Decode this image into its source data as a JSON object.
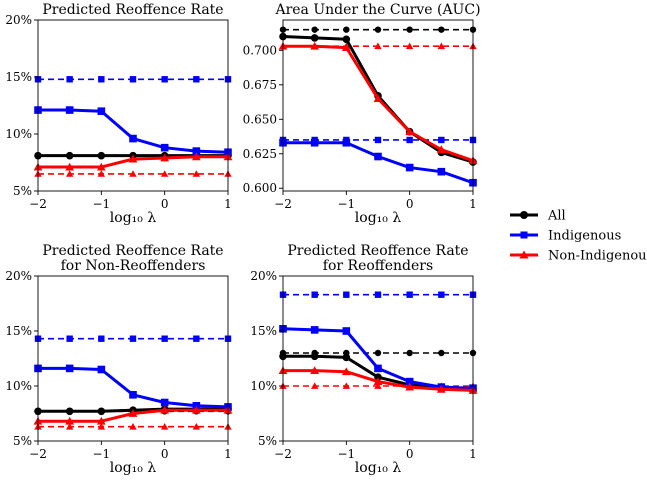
{
  "legend": {
    "placement": "right-center",
    "entries": [
      {
        "label": "All",
        "color": "#000000",
        "marker": "circle"
      },
      {
        "label": "Indigenous",
        "color": "#0000ff",
        "marker": "square"
      },
      {
        "label": "Non-Indigenous",
        "color": "#ff0000",
        "marker": "triangle"
      }
    ]
  },
  "chart_data": [
    {
      "type": "line",
      "title": "Predicted Reoffence Rate",
      "xlabel": "log₁₀ λ",
      "ylabel": "",
      "x": [
        -2,
        -1.5,
        -1,
        -0.5,
        0,
        0.5,
        1
      ],
      "xlim": [
        -2,
        1
      ],
      "ylim": [
        5,
        20
      ],
      "xticks": [
        {
          "v": -2,
          "label": "−2"
        },
        {
          "v": -1,
          "label": "−1"
        },
        {
          "v": 0,
          "label": "0"
        },
        {
          "v": 1,
          "label": "1"
        }
      ],
      "yticks": [
        {
          "v": 5,
          "label": "5%"
        },
        {
          "v": 10,
          "label": "10%"
        },
        {
          "v": 15,
          "label": "15%"
        },
        {
          "v": 20,
          "label": "20%"
        }
      ],
      "series": [
        {
          "name": "All",
          "group": "All",
          "style": "solid",
          "values": [
            8.1,
            8.1,
            8.1,
            8.1,
            8.1,
            8.1,
            8.1
          ]
        },
        {
          "name": "Indigenous",
          "group": "Indigenous",
          "style": "solid",
          "values": [
            12.1,
            12.1,
            12.0,
            9.6,
            8.8,
            8.5,
            8.4
          ]
        },
        {
          "name": "Non-Indigenous",
          "group": "Non-Indigenous",
          "style": "solid",
          "values": [
            7.1,
            7.1,
            7.1,
            7.8,
            7.9,
            8.0,
            8.0
          ]
        },
        {
          "group": "All",
          "style": "dashed",
          "values": [
            8.1,
            8.1,
            8.1,
            8.1,
            8.1,
            8.1,
            8.1
          ]
        },
        {
          "group": "Indigenous",
          "style": "dashed",
          "values": [
            14.8,
            14.8,
            14.8,
            14.8,
            14.8,
            14.8,
            14.8
          ]
        },
        {
          "group": "Non-Indigenous",
          "style": "dashed",
          "values": [
            6.5,
            6.5,
            6.5,
            6.5,
            6.5,
            6.5,
            6.5
          ]
        }
      ]
    },
    {
      "type": "line",
      "title": "Area Under the Curve (AUC)",
      "xlabel": "log₁₀ λ",
      "ylabel": "",
      "x": [
        -2,
        -1.5,
        -1,
        -0.5,
        0,
        0.5,
        1
      ],
      "xlim": [
        -2,
        1
      ],
      "ylim": [
        0.598,
        0.722
      ],
      "xticks": [
        {
          "v": -2,
          "label": "−2"
        },
        {
          "v": -1,
          "label": "−1"
        },
        {
          "v": 0,
          "label": "0"
        },
        {
          "v": 1,
          "label": "1"
        }
      ],
      "yticks": [
        {
          "v": 0.6,
          "label": "0.600"
        },
        {
          "v": 0.625,
          "label": "0.625"
        },
        {
          "v": 0.65,
          "label": "0.650"
        },
        {
          "v": 0.675,
          "label": "0.675"
        },
        {
          "v": 0.7,
          "label": "0.700"
        }
      ],
      "series": [
        {
          "name": "All",
          "group": "All",
          "style": "solid",
          "values": [
            0.71,
            0.709,
            0.708,
            0.667,
            0.641,
            0.626,
            0.619
          ]
        },
        {
          "name": "Indigenous",
          "group": "Indigenous",
          "style": "solid",
          "values": [
            0.633,
            0.633,
            0.633,
            0.623,
            0.615,
            0.612,
            0.604
          ]
        },
        {
          "name": "Non-Indigenous",
          "group": "Non-Indigenous",
          "style": "solid",
          "values": [
            0.703,
            0.703,
            0.702,
            0.665,
            0.641,
            0.628,
            0.62
          ]
        },
        {
          "group": "All",
          "style": "dashed",
          "values": [
            0.715,
            0.715,
            0.715,
            0.715,
            0.715,
            0.715,
            0.715
          ]
        },
        {
          "group": "Indigenous",
          "style": "dashed",
          "values": [
            0.635,
            0.635,
            0.635,
            0.635,
            0.635,
            0.635,
            0.635
          ]
        },
        {
          "group": "Non-Indigenous",
          "style": "dashed",
          "values": [
            0.703,
            0.703,
            0.703,
            0.703,
            0.703,
            0.703,
            0.703
          ]
        }
      ]
    },
    {
      "type": "line",
      "title": "Predicted Reoffence Rate for Non-Reoffenders",
      "title_lines": [
        "Predicted Reoffence Rate",
        "for Non-Reoffenders"
      ],
      "xlabel": "log₁₀ λ",
      "ylabel": "",
      "x": [
        -2,
        -1.5,
        -1,
        -0.5,
        0,
        0.5,
        1
      ],
      "xlim": [
        -2,
        1
      ],
      "ylim": [
        5,
        20
      ],
      "xticks": [
        {
          "v": -2,
          "label": "−2"
        },
        {
          "v": -1,
          "label": "−1"
        },
        {
          "v": 0,
          "label": "0"
        },
        {
          "v": 1,
          "label": "1"
        }
      ],
      "yticks": [
        {
          "v": 5,
          "label": "5%"
        },
        {
          "v": 10,
          "label": "10%"
        },
        {
          "v": 15,
          "label": "15%"
        },
        {
          "v": 20,
          "label": "20%"
        }
      ],
      "series": [
        {
          "name": "All",
          "group": "All",
          "style": "solid",
          "values": [
            7.7,
            7.7,
            7.7,
            7.8,
            7.9,
            7.9,
            7.9
          ]
        },
        {
          "name": "Indigenous",
          "group": "Indigenous",
          "style": "solid",
          "values": [
            11.6,
            11.6,
            11.5,
            9.2,
            8.5,
            8.2,
            8.1
          ]
        },
        {
          "name": "Non-Indigenous",
          "group": "Non-Indigenous",
          "style": "solid",
          "values": [
            6.8,
            6.8,
            6.8,
            7.5,
            7.8,
            7.8,
            7.8
          ]
        },
        {
          "group": "All",
          "style": "dashed",
          "values": [
            7.7,
            7.7,
            7.7,
            7.7,
            7.7,
            7.7,
            7.7
          ]
        },
        {
          "group": "Indigenous",
          "style": "dashed",
          "values": [
            14.3,
            14.3,
            14.3,
            14.3,
            14.3,
            14.3,
            14.3
          ]
        },
        {
          "group": "Non-Indigenous",
          "style": "dashed",
          "values": [
            6.3,
            6.3,
            6.3,
            6.3,
            6.3,
            6.3,
            6.3
          ]
        }
      ]
    },
    {
      "type": "line",
      "title": "Predicted Reoffence Rate for Reoffenders",
      "title_lines": [
        "Predicted Reoffence Rate",
        "for Reoffenders"
      ],
      "xlabel": "log₁₀ λ",
      "ylabel": "",
      "x": [
        -2,
        -1.5,
        -1,
        -0.5,
        0,
        0.5,
        1
      ],
      "xlim": [
        -2,
        1
      ],
      "ylim": [
        5,
        20
      ],
      "xticks": [
        {
          "v": -2,
          "label": "−2"
        },
        {
          "v": -1,
          "label": "−1"
        },
        {
          "v": 0,
          "label": "0"
        },
        {
          "v": 1,
          "label": "1"
        }
      ],
      "yticks": [
        {
          "v": 5,
          "label": "5%"
        },
        {
          "v": 10,
          "label": "10%"
        },
        {
          "v": 15,
          "label": "15%"
        },
        {
          "v": 20,
          "label": "20%"
        }
      ],
      "series": [
        {
          "name": "All",
          "group": "All",
          "style": "solid",
          "values": [
            12.7,
            12.7,
            12.6,
            10.8,
            10.1,
            9.8,
            9.7
          ]
        },
        {
          "name": "Indigenous",
          "group": "Indigenous",
          "style": "solid",
          "values": [
            15.2,
            15.1,
            15.0,
            11.6,
            10.4,
            9.9,
            9.8
          ]
        },
        {
          "name": "Non-Indigenous",
          "group": "Non-Indigenous",
          "style": "solid",
          "values": [
            11.4,
            11.4,
            11.3,
            10.4,
            9.9,
            9.7,
            9.6
          ]
        },
        {
          "group": "All",
          "style": "dashed",
          "values": [
            13.0,
            13.0,
            13.0,
            13.0,
            13.0,
            13.0,
            13.0
          ]
        },
        {
          "group": "Indigenous",
          "style": "dashed",
          "values": [
            18.3,
            18.3,
            18.3,
            18.3,
            18.3,
            18.3,
            18.3
          ]
        },
        {
          "group": "Non-Indigenous",
          "style": "dashed",
          "values": [
            10.0,
            10.0,
            10.0,
            10.0,
            10.0,
            10.0,
            10.0
          ]
        }
      ]
    }
  ]
}
